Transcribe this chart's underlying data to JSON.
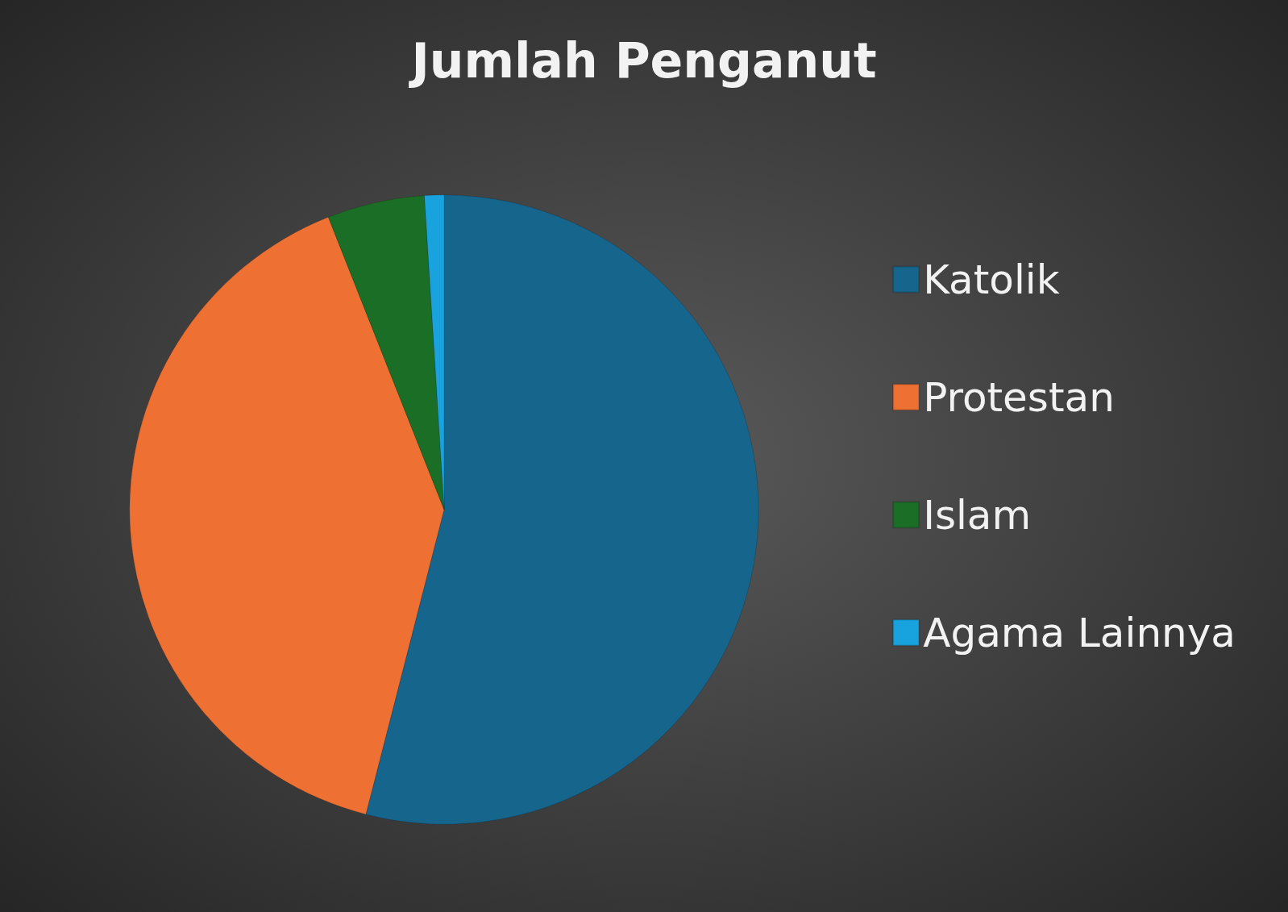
{
  "chart_data": {
    "type": "pie",
    "title": "Jumlah Penganut",
    "categories": [
      "Katolik",
      "Protestan",
      "Islam",
      "Agama Lainnya"
    ],
    "values": [
      54,
      40,
      5,
      1
    ],
    "colors": [
      "#15658d",
      "#ee7032",
      "#1b6e26",
      "#19a3de"
    ],
    "legend": "right"
  }
}
